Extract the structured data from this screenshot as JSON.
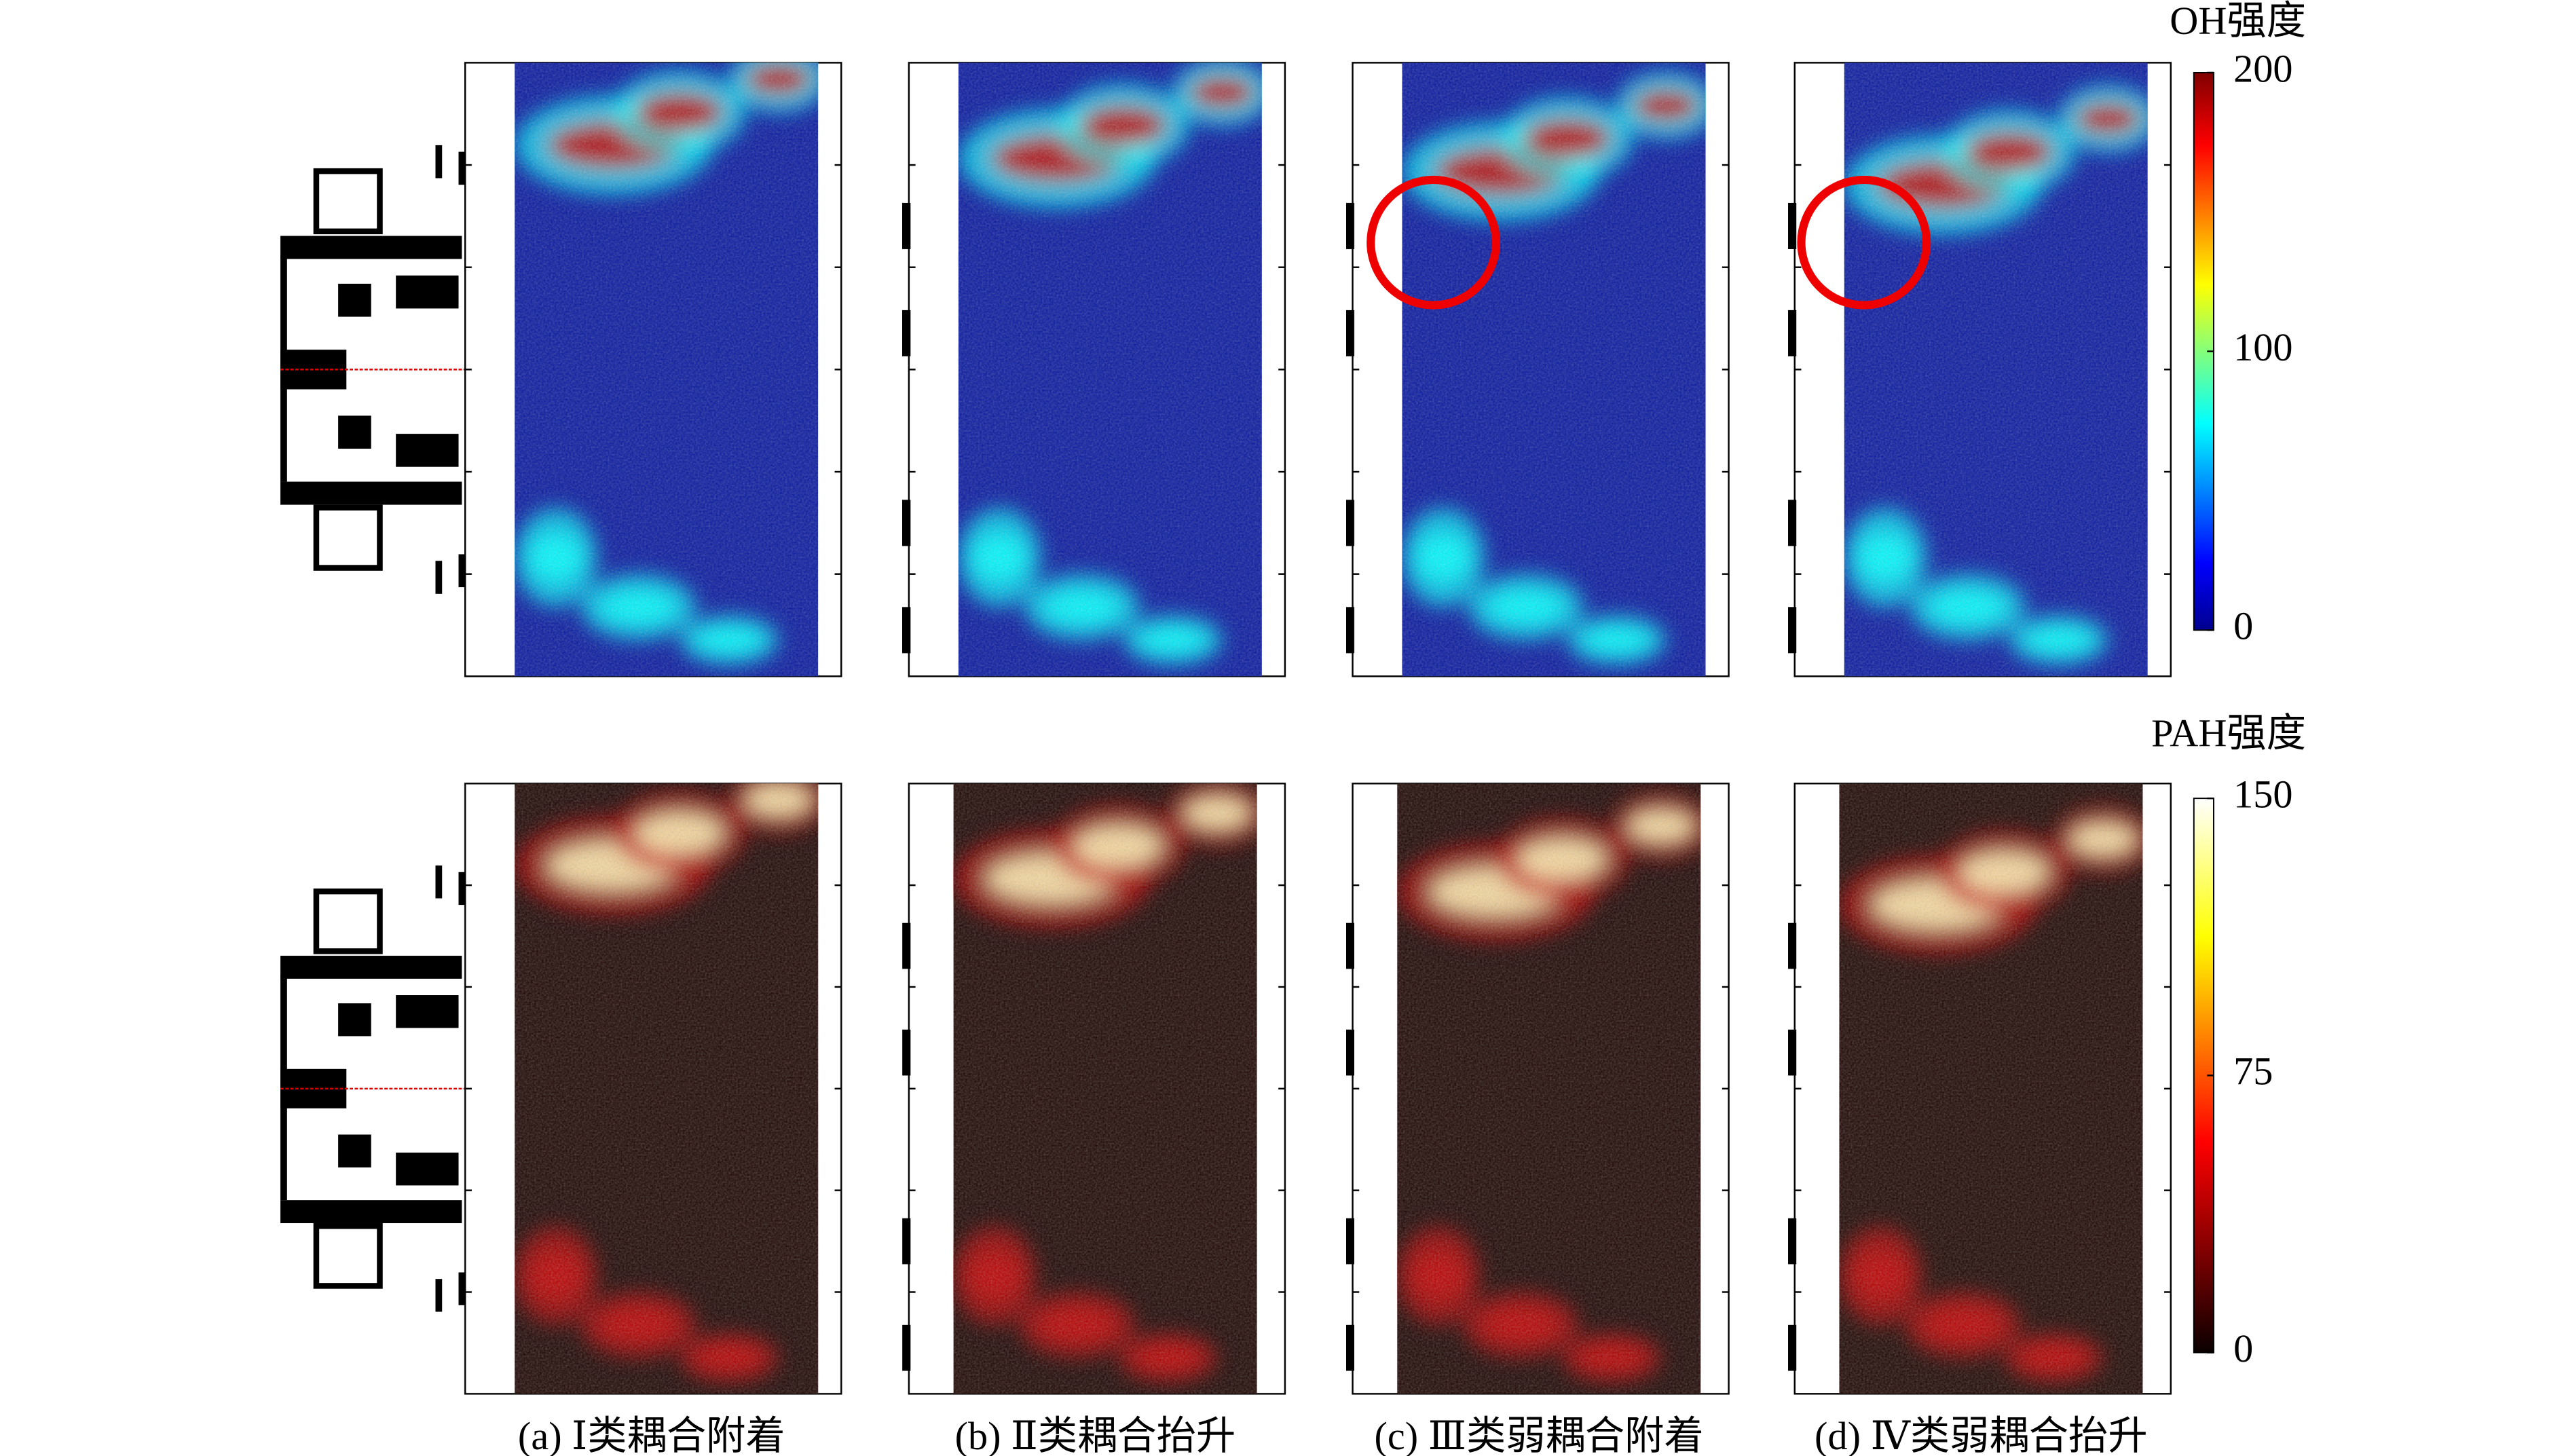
{
  "colorbars": [
    {
      "title": "OH强度",
      "lim": [
        0,
        200
      ],
      "ticks": [
        0,
        100,
        200
      ]
    },
    {
      "title": "PAH强度",
      "lim": [
        0,
        150
      ],
      "ticks": [
        0,
        75,
        150
      ]
    }
  ],
  "panels": [
    {
      "caption": "(a) Ⅰ类耦合附着"
    },
    {
      "caption": "(b) Ⅱ类耦合抬升"
    },
    {
      "caption": "(c) Ⅲ类弱耦合附着"
    },
    {
      "caption": "(d) Ⅳ类弱耦合抬升"
    }
  ]
}
